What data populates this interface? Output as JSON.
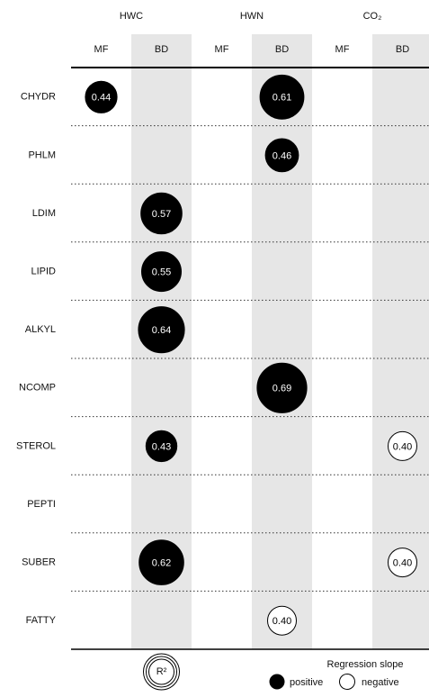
{
  "chart_data": {
    "type": "bubble-matrix",
    "groups": [
      "HWC",
      "HWN",
      "CO₂"
    ],
    "columns": [
      "MF",
      "BD",
      "MF",
      "BD",
      "MF",
      "BD"
    ],
    "rows": [
      "CHYDR",
      "PHLM",
      "LDIM",
      "LIPID",
      "ALKYL",
      "NCOMP",
      "STEROL",
      "PEPTI",
      "SUBER",
      "FATTY"
    ],
    "values": [
      [
        0.44,
        null,
        null,
        0.61,
        null,
        null
      ],
      [
        null,
        null,
        null,
        0.46,
        null,
        null
      ],
      [
        null,
        0.57,
        null,
        null,
        null,
        null
      ],
      [
        null,
        0.55,
        null,
        null,
        null,
        null
      ],
      [
        null,
        0.64,
        null,
        null,
        null,
        null
      ],
      [
        null,
        null,
        null,
        0.69,
        null,
        null
      ],
      [
        null,
        0.43,
        null,
        null,
        null,
        0.4
      ],
      [
        null,
        null,
        null,
        null,
        null,
        null
      ],
      [
        null,
        0.62,
        null,
        null,
        null,
        0.4
      ],
      [
        null,
        null,
        null,
        0.4,
        null,
        null
      ]
    ],
    "value_labels": [
      [
        "0.44",
        null,
        null,
        "0.61",
        null,
        null
      ],
      [
        null,
        null,
        null,
        "0.46",
        null,
        null
      ],
      [
        null,
        "0.57",
        null,
        null,
        null,
        null
      ],
      [
        null,
        "0.55",
        null,
        null,
        null,
        null
      ],
      [
        null,
        "0.64",
        null,
        null,
        null,
        null
      ],
      [
        null,
        null,
        null,
        "0.69",
        null,
        null
      ],
      [
        null,
        "0.43",
        null,
        null,
        null,
        "0.40"
      ],
      [
        null,
        null,
        null,
        null,
        null,
        null
      ],
      [
        null,
        "0.62",
        null,
        null,
        null,
        "0.40"
      ],
      [
        null,
        null,
        null,
        "0.40",
        null,
        null
      ]
    ],
    "slopes": [
      [
        "positive",
        null,
        null,
        "positive",
        null,
        null
      ],
      [
        null,
        null,
        null,
        "positive",
        null,
        null
      ],
      [
        null,
        "positive",
        null,
        null,
        null,
        null
      ],
      [
        null,
        "positive",
        null,
        null,
        null,
        null
      ],
      [
        null,
        "positive",
        null,
        null,
        null,
        null
      ],
      [
        null,
        null,
        null,
        "positive",
        null,
        null
      ],
      [
        null,
        "positive",
        null,
        null,
        null,
        "negative"
      ],
      [
        null,
        null,
        null,
        null,
        null,
        null
      ],
      [
        null,
        "positive",
        null,
        null,
        null,
        "negative"
      ],
      [
        null,
        null,
        null,
        "negative",
        null,
        null
      ]
    ],
    "shaded_column": "BD",
    "legend": {
      "size": "R²",
      "title": "Regression slope",
      "positive": "positive",
      "negative": "negative"
    }
  }
}
